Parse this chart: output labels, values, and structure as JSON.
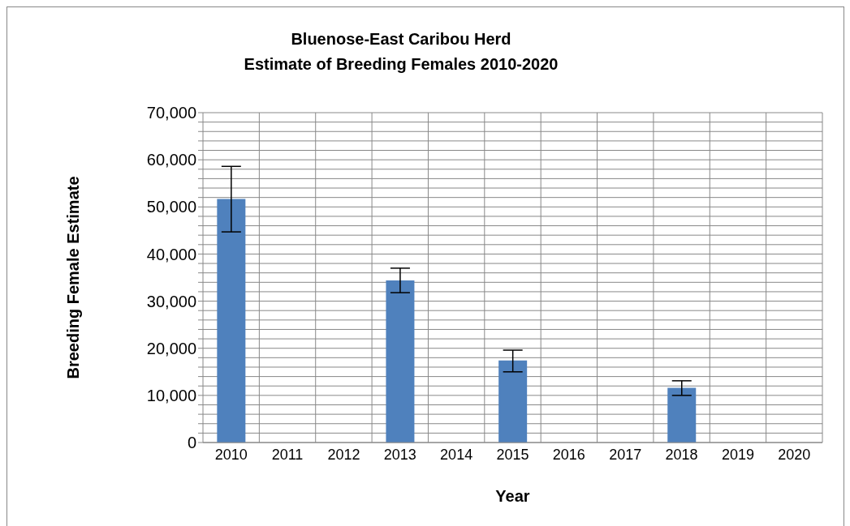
{
  "chart_data": {
    "type": "bar",
    "title": "Bluenose-East Caribou Herd\nEstimate of Breeding Females 2010-2020",
    "xlabel": "Year",
    "ylabel": "Breeding Female Estimate",
    "categories": [
      "2010",
      "2011",
      "2012",
      "2013",
      "2014",
      "2015",
      "2016",
      "2017",
      "2018",
      "2019",
      "2020"
    ],
    "values": [
      51700,
      null,
      null,
      34400,
      null,
      17400,
      null,
      null,
      11600,
      null,
      null
    ],
    "errors": [
      [
        44700,
        58600
      ],
      null,
      null,
      [
        31800,
        37000
      ],
      null,
      [
        15000,
        19600
      ],
      null,
      null,
      [
        10000,
        13100
      ],
      null,
      null
    ],
    "color": "#4f81bd",
    "ylim": [
      0,
      70000
    ],
    "yticks": [
      0,
      {
        "value": 2000,
        "label": null
      },
      {
        "value": 4000,
        "label": null
      },
      {
        "value": 6000,
        "label": null
      },
      {
        "value": 8000,
        "label": null
      },
      {
        "value": 10000,
        "label": "10,000"
      },
      {
        "value": 12000,
        "label": null
      },
      {
        "value": 14000,
        "label": null
      },
      {
        "value": 16000,
        "label": null
      },
      {
        "value": 18000,
        "label": null
      },
      {
        "value": 20000,
        "label": "20,000"
      },
      {
        "value": 22000,
        "label": null
      },
      {
        "value": 24000,
        "label": null
      },
      {
        "value": 26000,
        "label": null
      },
      {
        "value": 28000,
        "label": null
      },
      {
        "value": 30000,
        "label": "30,000"
      },
      {
        "value": 32000,
        "label": null
      },
      {
        "value": 34000,
        "label": null
      },
      {
        "value": 36000,
        "label": null
      },
      {
        "value": 38000,
        "label": null
      },
      {
        "value": 40000,
        "label": "40,000"
      },
      {
        "value": 42000,
        "label": null
      },
      {
        "value": 44000,
        "label": null
      },
      {
        "value": 46000,
        "label": null
      },
      {
        "value": 48000,
        "label": null
      },
      {
        "value": 50000,
        "label": "50,000"
      },
      {
        "value": 52000,
        "label": null
      },
      {
        "value": 54000,
        "label": null
      },
      {
        "value": 56000,
        "label": null
      },
      {
        "value": 58000,
        "label": null
      },
      {
        "value": 60000,
        "label": "60,000"
      },
      {
        "value": 62000,
        "label": null
      },
      {
        "value": 64000,
        "label": null
      },
      {
        "value": 66000,
        "label": null
      },
      {
        "value": 68000,
        "label": null
      },
      {
        "value": 70000,
        "label": "70,000"
      }
    ],
    "grid": true,
    "legend": false
  }
}
